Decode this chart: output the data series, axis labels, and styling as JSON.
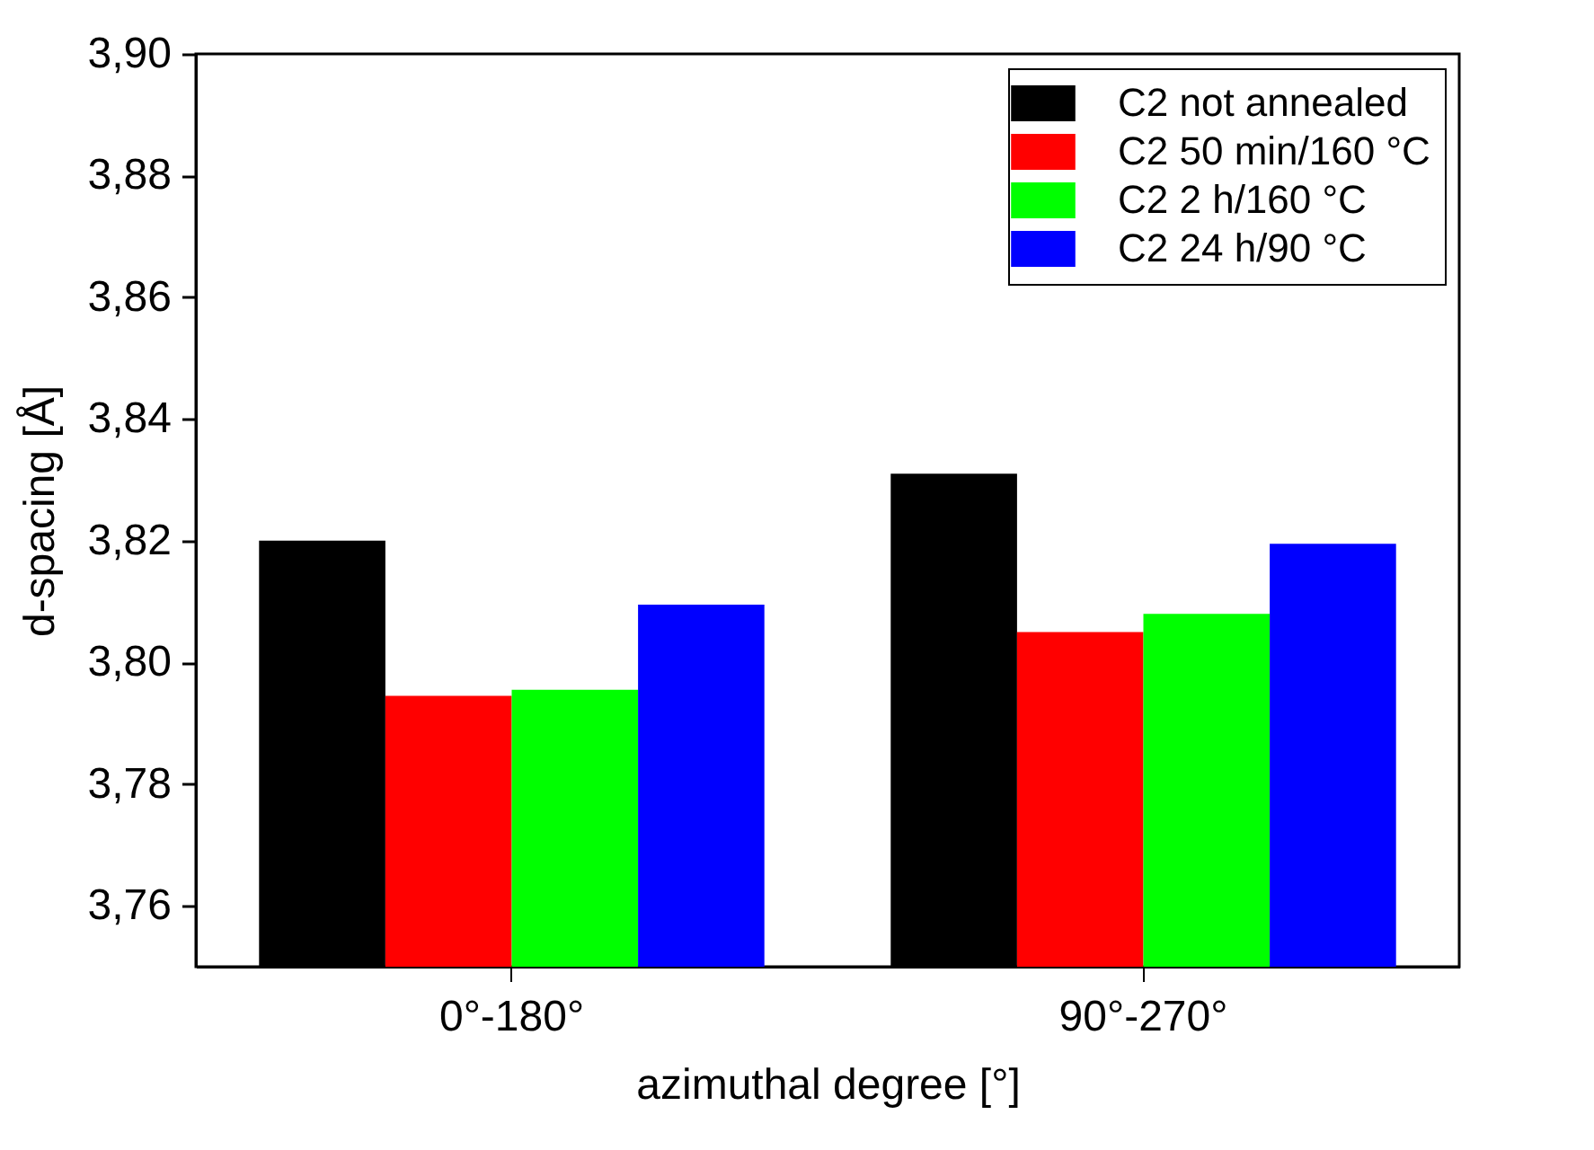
{
  "chart_data": {
    "type": "bar",
    "xlabel": "azimuthal degree [°]",
    "ylabel": "d-spacing [Å]",
    "categories": [
      "0°-180°",
      "90°-270°"
    ],
    "series": [
      {
        "name": "C2 not annealed",
        "color": "#000000",
        "values": [
          3.82,
          3.831
        ]
      },
      {
        "name": "C2 50 min/160 °C",
        "color": "#ff0000",
        "values": [
          3.7945,
          3.805
        ]
      },
      {
        "name": "C2 2 h/160 °C",
        "color": "#00ff00",
        "values": [
          3.7955,
          3.808
        ]
      },
      {
        "name": "C2 24 h/90 °C",
        "color": "#0000ff",
        "values": [
          3.8095,
          3.8195
        ]
      }
    ],
    "ylim": [
      3.75,
      3.9
    ],
    "yticks": [
      {
        "value": 3.76,
        "label": "3,76"
      },
      {
        "value": 3.78,
        "label": "3,78"
      },
      {
        "value": 3.8,
        "label": "3,80"
      },
      {
        "value": 3.82,
        "label": "3,82"
      },
      {
        "value": 3.84,
        "label": "3,84"
      },
      {
        "value": 3.86,
        "label": "3,86"
      },
      {
        "value": 3.88,
        "label": "3,88"
      },
      {
        "value": 3.9,
        "label": "3,90"
      }
    ],
    "grid": false,
    "legend": "top right"
  }
}
